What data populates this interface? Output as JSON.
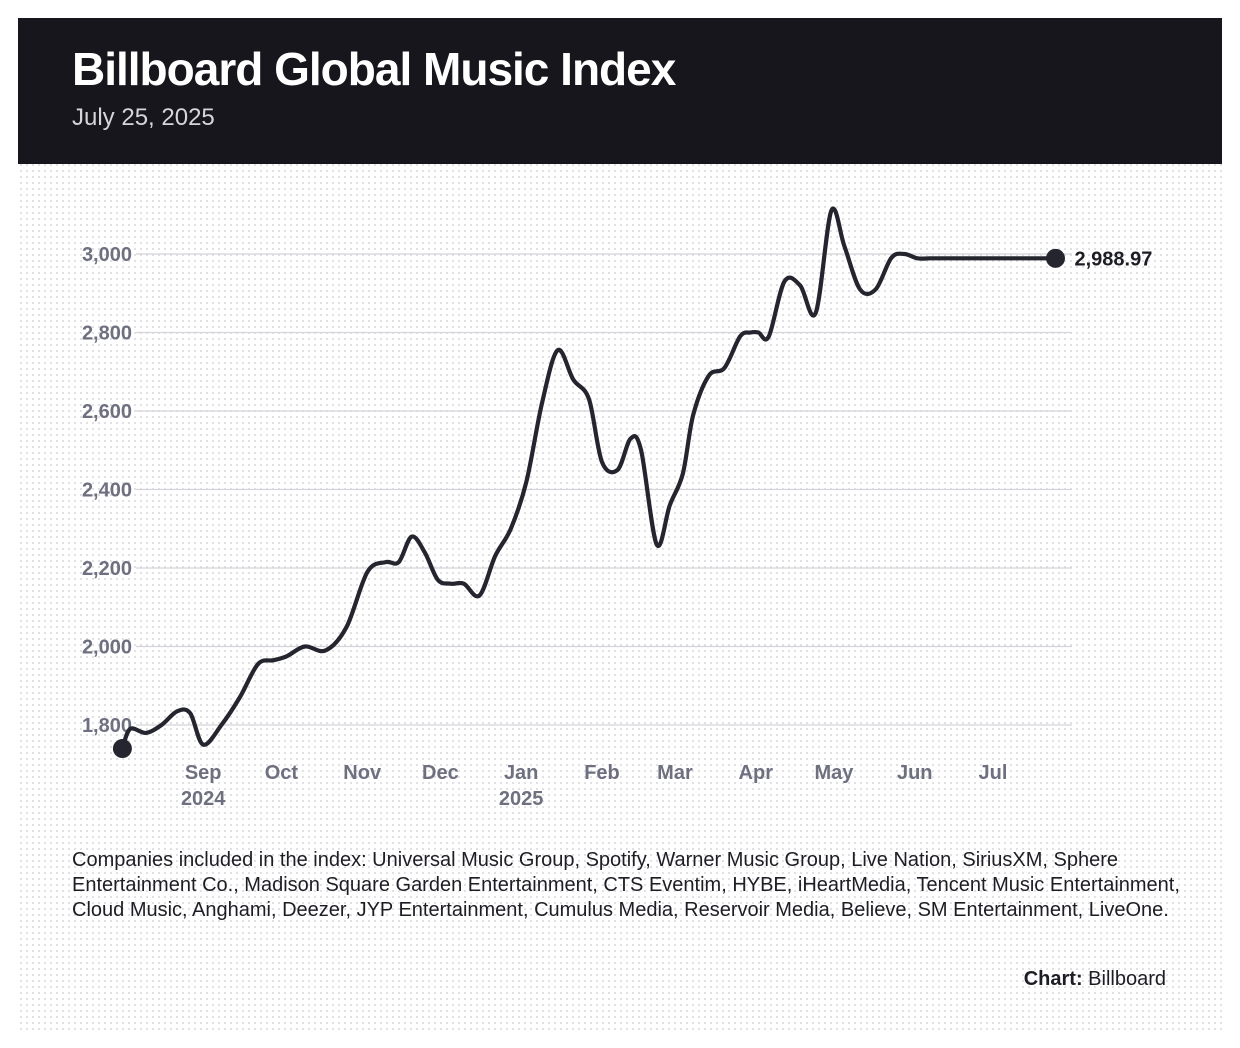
{
  "header": {
    "title": "Billboard Global Music Index",
    "date": "July 25, 2025"
  },
  "footnote": "Companies included in the index: Universal Music Group, Spotify, Warner Music Group, Live Nation, SiriusXM, Sphere Entertainment Co., Madison Square Garden Entertainment, CTS Eventim, HYBE, iHeartMedia, Tencent Music Entertainment, Cloud Music, Anghami, Deezer, JYP Entertainment, Cumulus Media, Reservoir Media, Believe, SM Entertainment, LiveOne.",
  "credit": {
    "label": "Chart:",
    "source": "Billboard"
  },
  "colors": {
    "header_bg": "#16161c",
    "line": "#25252f",
    "grid": "#d4d4da",
    "axis_text": "#6e7080"
  },
  "chart_data": {
    "type": "line",
    "title": "Billboard Global Music Index",
    "subtitle": "July 25, 2025",
    "xlabel": "",
    "ylabel": "",
    "ylim": [
      1760,
      3120
    ],
    "xlim": [
      "2024-08-01",
      "2025-07-25"
    ],
    "y_ticks": [
      {
        "value": 1800,
        "label": "1,800"
      },
      {
        "value": 2000,
        "label": "2,000"
      },
      {
        "value": 2200,
        "label": "2,200"
      },
      {
        "value": 2400,
        "label": "2,400"
      },
      {
        "value": 2600,
        "label": "2,600"
      },
      {
        "value": 2800,
        "label": "2,800"
      },
      {
        "value": 3000,
        "label": "3,000"
      }
    ],
    "x_ticks": [
      {
        "date": "2024-09-01",
        "label": "Sep",
        "year": "2024"
      },
      {
        "date": "2024-10-01",
        "label": "Oct",
        "year": ""
      },
      {
        "date": "2024-11-01",
        "label": "Nov",
        "year": ""
      },
      {
        "date": "2024-12-01",
        "label": "Dec",
        "year": ""
      },
      {
        "date": "2025-01-01",
        "label": "Jan",
        "year": "2025"
      },
      {
        "date": "2025-02-01",
        "label": "Feb",
        "year": ""
      },
      {
        "date": "2025-03-01",
        "label": "Mar",
        "year": ""
      },
      {
        "date": "2025-04-01",
        "label": "Apr",
        "year": ""
      },
      {
        "date": "2025-05-01",
        "label": "May",
        "year": ""
      },
      {
        "date": "2025-06-01",
        "label": "Jun",
        "year": ""
      },
      {
        "date": "2025-07-01",
        "label": "Jul",
        "year": ""
      }
    ],
    "grid": true,
    "series": [
      {
        "x": [
          "2024-08-01",
          "2024-08-04",
          "2024-08-10",
          "2024-08-16",
          "2024-08-22",
          "2024-08-27",
          "2024-09-01",
          "2024-09-08",
          "2024-09-15",
          "2024-09-22",
          "2024-09-28",
          "2024-10-03",
          "2024-10-10",
          "2024-10-18",
          "2024-10-26",
          "2024-11-03",
          "2024-11-10",
          "2024-11-15",
          "2024-11-20",
          "2024-11-25",
          "2024-11-30",
          "2024-12-05",
          "2024-12-10",
          "2024-12-16",
          "2024-12-22",
          "2024-12-28",
          "2025-01-03",
          "2025-01-09",
          "2025-01-15",
          "2025-01-21",
          "2025-01-27",
          "2025-02-01",
          "2025-02-07",
          "2025-02-12",
          "2025-02-16",
          "2025-02-22",
          "2025-02-27",
          "2025-03-04",
          "2025-03-08",
          "2025-03-14",
          "2025-03-20",
          "2025-03-26",
          "2025-03-30",
          "2025-04-02",
          "2025-04-06",
          "2025-04-12",
          "2025-04-18",
          "2025-04-24",
          "2025-04-30",
          "2025-05-05",
          "2025-05-11",
          "2025-05-17",
          "2025-05-23",
          "2025-05-28",
          "2025-06-02",
          "2025-06-07",
          "2025-06-12",
          "2025-06-16",
          "2025-06-20",
          "2025-06-25",
          "2025-06-30",
          "2025-07-04",
          "2025-07-09",
          "2025-07-13",
          "2025-07-18",
          "2025-07-25"
        ],
        "y": [
          1740,
          1790,
          1780,
          1800,
          1835,
          1830,
          1750,
          1800,
          1870,
          1955,
          1965,
          1975,
          2000,
          1990,
          2050,
          2190,
          2215,
          2215,
          2280,
          2240,
          2170,
          2160,
          2160,
          2130,
          2230,
          2300,
          2420,
          2620,
          2755,
          2680,
          2630,
          2470,
          2450,
          2530,
          2500,
          2260,
          2360,
          2440,
          2590,
          2690,
          2710,
          2790,
          2800,
          2800,
          2790,
          2930,
          2920,
          2850,
          3110,
          3020,
          2910,
          2910,
          2990,
          3000,
          2988.97,
          2988.97,
          2988.97,
          2988.97,
          2988.97,
          2988.97,
          2988.97,
          2988.97,
          2988.97,
          2988.97,
          2988.97,
          2988.97
        ]
      }
    ],
    "end_label": "2,988.97"
  }
}
